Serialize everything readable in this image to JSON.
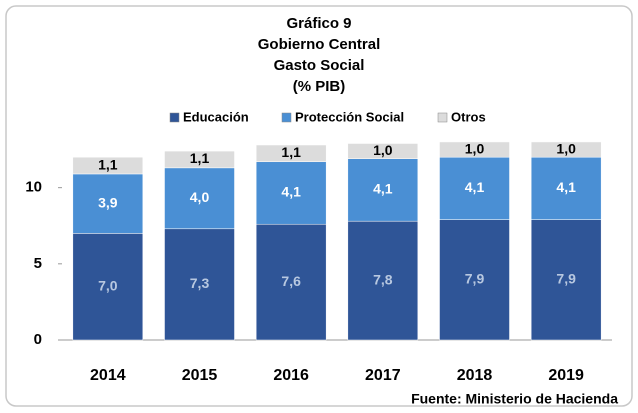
{
  "chart_data": {
    "type": "stacked-bar",
    "title": [
      "Gráfico 9",
      "Gobierno Central",
      "Gasto Social",
      "(% PIB)"
    ],
    "source": "Fuente: Ministerio de Hacienda",
    "categories": [
      "2014",
      "2015",
      "2016",
      "2017",
      "2018",
      "2019"
    ],
    "series": [
      {
        "name": "Educación",
        "color": "#2f5597",
        "values": [
          7.0,
          7.3,
          7.6,
          7.8,
          7.9,
          7.9
        ],
        "value_labels": [
          "7,0",
          "7,3",
          "7,6",
          "7,8",
          "7,9",
          "7,9"
        ]
      },
      {
        "name": "Protección Social",
        "color": "#4a8fd4",
        "values": [
          3.9,
          4.0,
          4.1,
          4.1,
          4.1,
          4.1
        ],
        "value_labels": [
          "3,9",
          "4,0",
          "4,1",
          "4,1",
          "4,1",
          "4,1"
        ]
      },
      {
        "name": "Otros",
        "color": "#dcdcdc",
        "values": [
          1.1,
          1.1,
          1.1,
          1.0,
          1.0,
          1.0
        ],
        "value_labels": [
          "1,1",
          "1,1",
          "1,1",
          "1,0",
          "1,0",
          "1,0"
        ]
      }
    ],
    "ylim": [
      0,
      12.8
    ],
    "yticks": [
      0,
      5,
      10
    ],
    "grid": false
  }
}
